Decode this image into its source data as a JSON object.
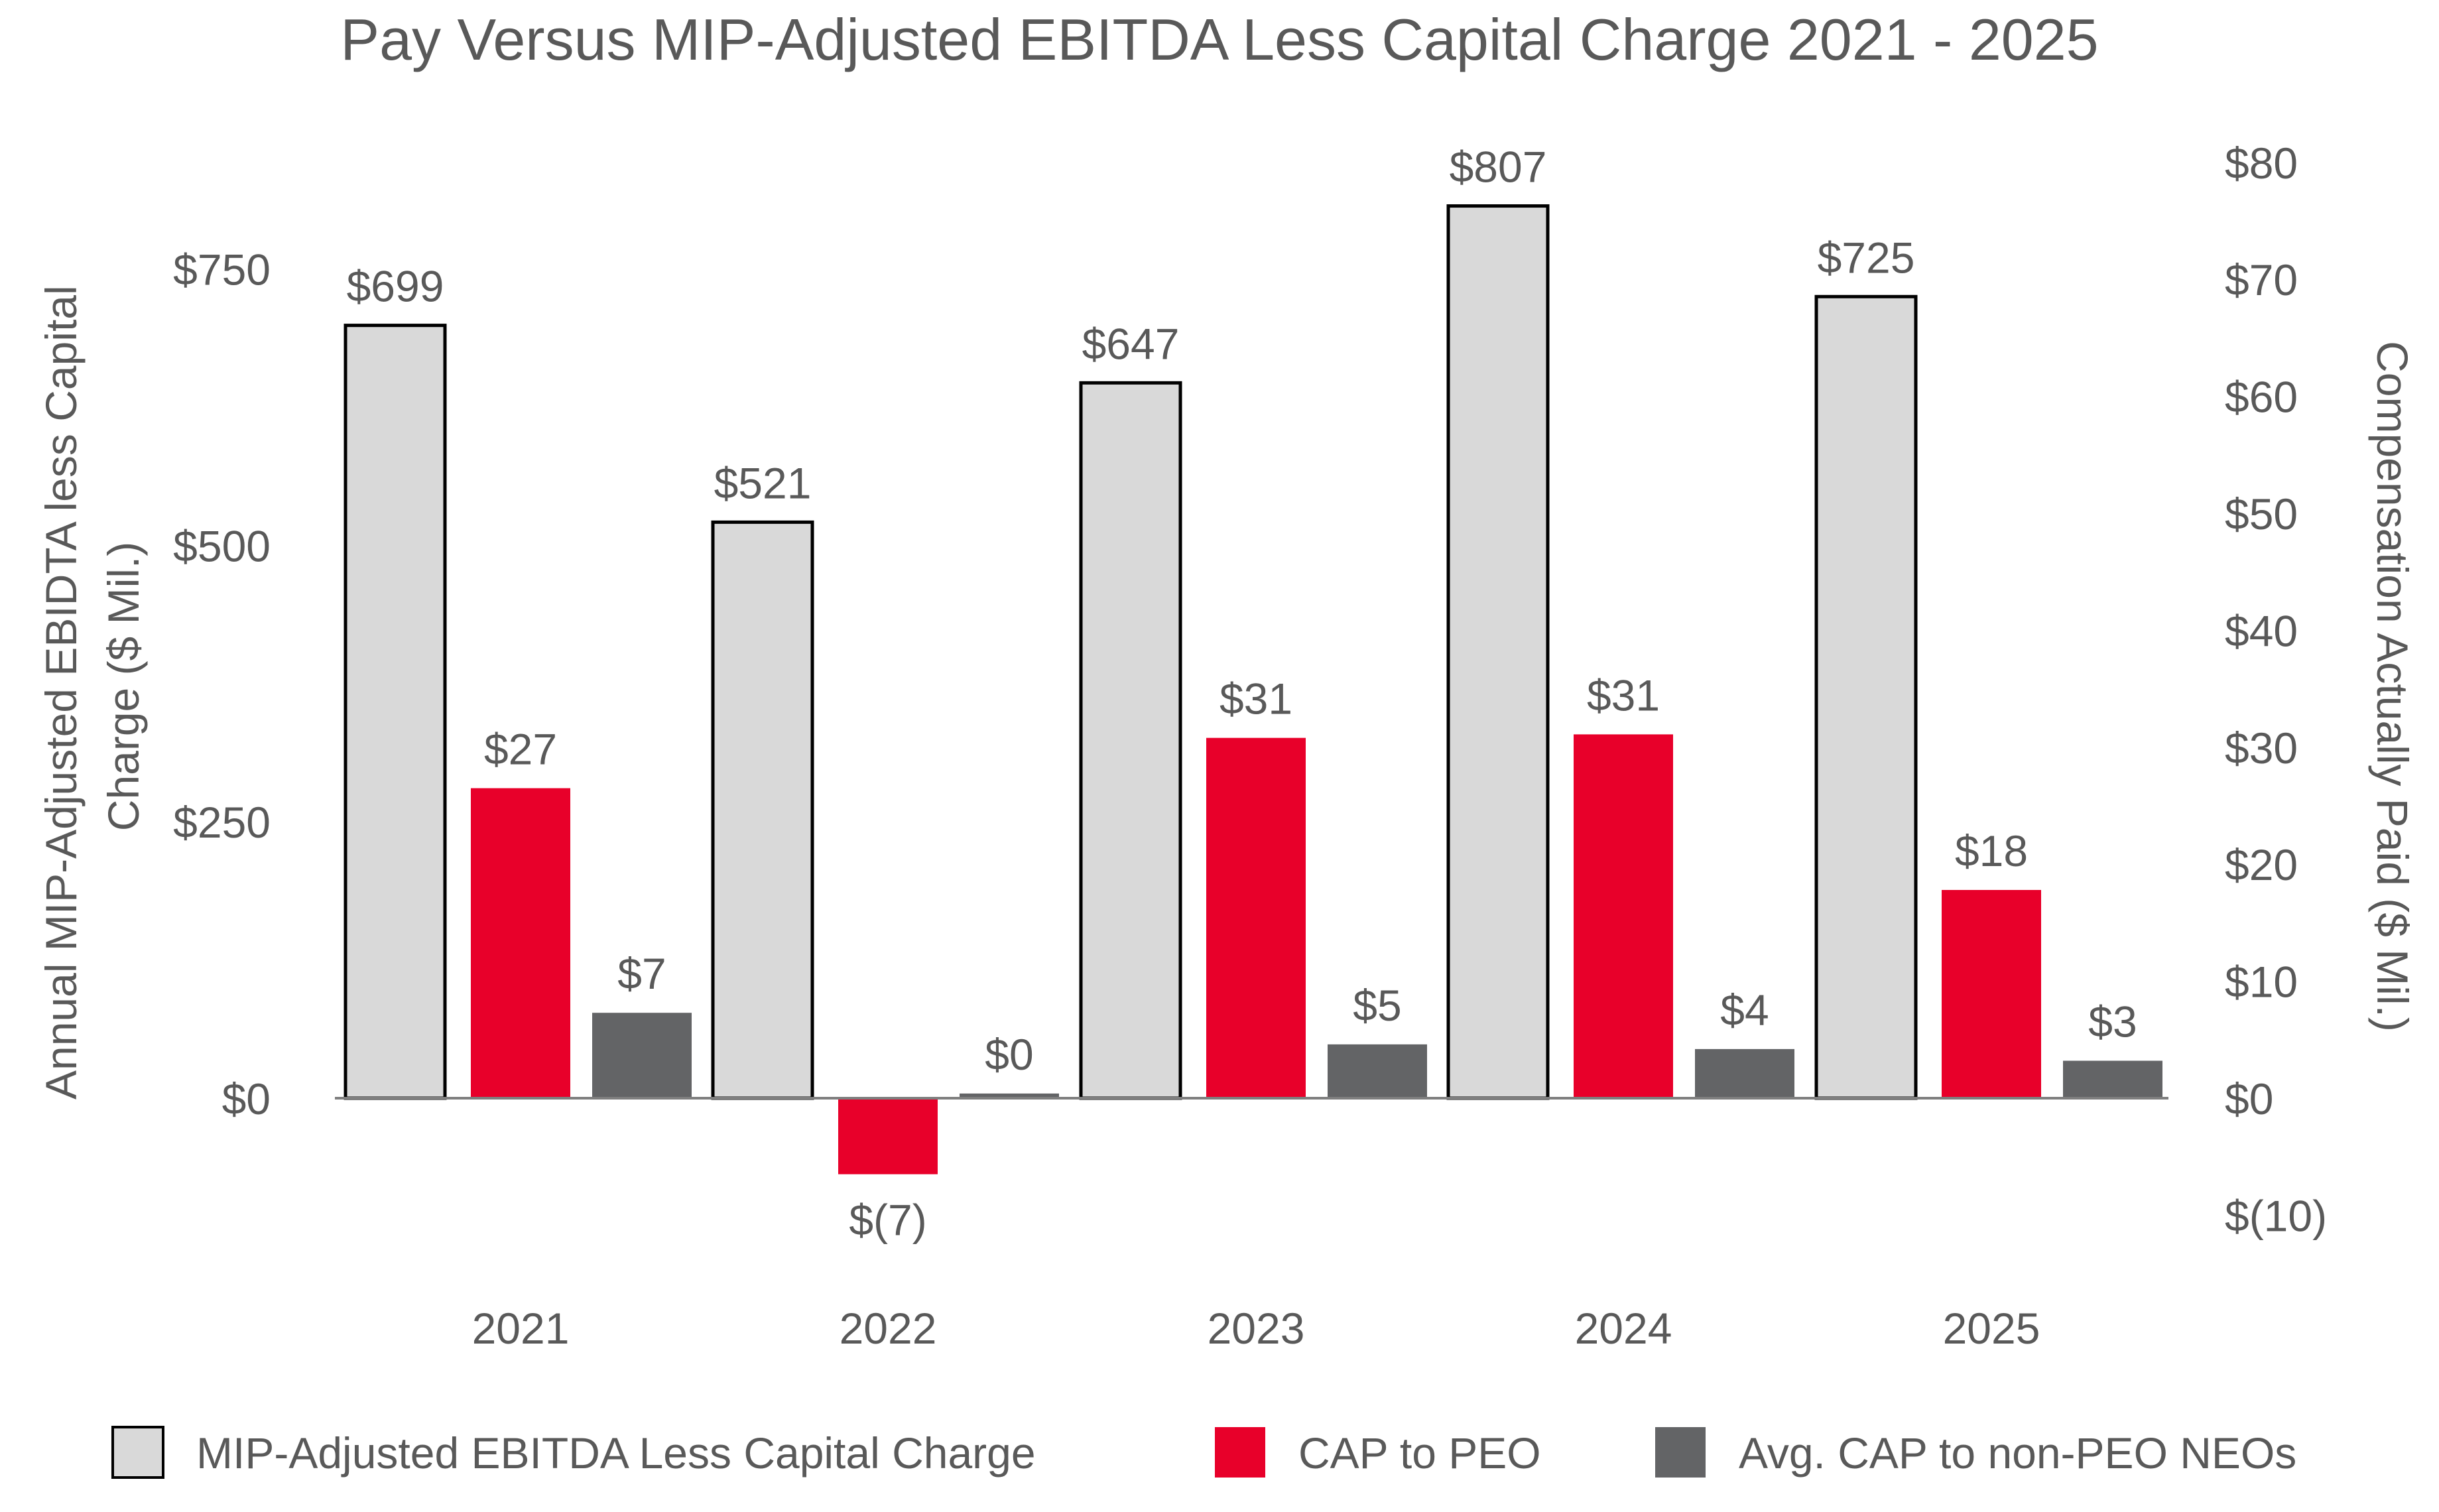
{
  "chart_data": {
    "type": "bar",
    "title": "Pay Versus MIP-Adjusted EBITDA Less Capital Charge 2021 - 2025",
    "categories": [
      "2021",
      "2022",
      "2023",
      "2024",
      "2025"
    ],
    "y_left": {
      "label": "Annual MIP-Adjusted EBIDTA less Capital Charge ($ Mil.)",
      "label_lines": [
        "Annual MIP-Adjusted EBIDTA less Capital",
        "Charge ($ Mil.)"
      ],
      "ticks": [
        0,
        250,
        500,
        750
      ],
      "tick_labels": [
        "$0",
        "$250",
        "$500",
        "$750"
      ],
      "range": [
        -143,
        857
      ]
    },
    "y_right": {
      "label": "Compensation Actually Paid ($ Mil.)",
      "ticks": [
        -10,
        0,
        10,
        20,
        30,
        40,
        50,
        60,
        70,
        80
      ],
      "tick_labels": [
        "$(10)",
        "$0",
        "$10",
        "$20",
        "$30",
        "$40",
        "$50",
        "$60",
        "$70",
        "$80"
      ],
      "range": [
        -10,
        80
      ]
    },
    "series": [
      {
        "name": "MIP-Adjusted EBITDA Less Capital Charge",
        "axis": "left",
        "color": "#d9d9d9",
        "outline": "#000000",
        "values": [
          699,
          521,
          647,
          807,
          725
        ],
        "labels": [
          "$699",
          "$521",
          "$647",
          "$807",
          "$725"
        ]
      },
      {
        "name": "CAP to PEO",
        "axis": "right",
        "color": "#e8002a",
        "outline": "",
        "values": [
          26.5,
          -6.5,
          30.8,
          31.1,
          17.8
        ],
        "labels": [
          "$27",
          "$(7)",
          "$31",
          "$31",
          "$18"
        ]
      },
      {
        "name": "Avg. CAP to non-PEO NEOs",
        "axis": "right",
        "color": "#636466",
        "outline": "",
        "values": [
          7.3,
          0.4,
          4.6,
          4.2,
          3.2
        ],
        "labels": [
          "$7",
          "$0",
          "$5",
          "$4",
          "$3"
        ]
      }
    ],
    "legend": {
      "position": "bottom"
    },
    "grid": false,
    "colors": {
      "text": "#595959",
      "axis": "#7f7f7f"
    }
  }
}
